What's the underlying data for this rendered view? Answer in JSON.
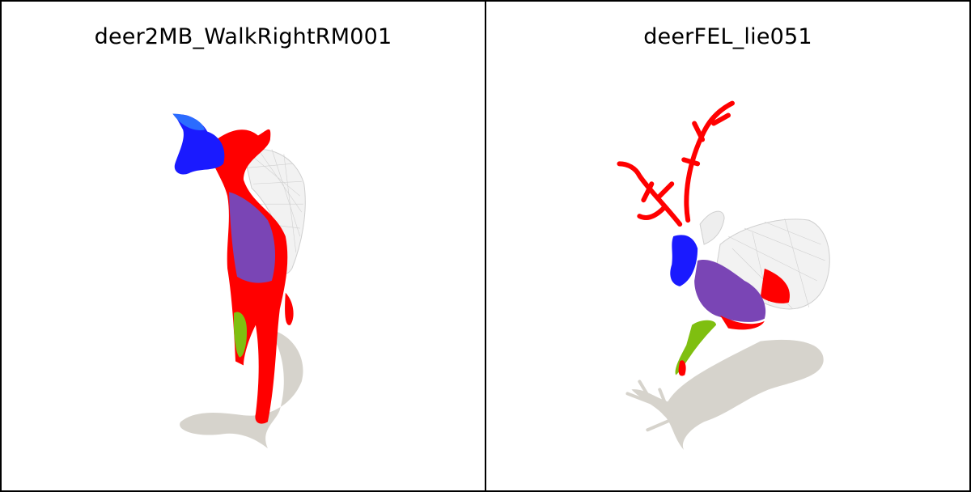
{
  "panels": [
    {
      "title": "deer2MB_WalkRightRM001"
    },
    {
      "title": "deerFEL_lie051"
    }
  ],
  "colors": {
    "red": "#ff0000",
    "blue": "#1a1aff",
    "purple": "#7a3fb8",
    "green": "#66cc00",
    "wireframe": "#d9d9d9",
    "shadow": "#d6d3cc"
  }
}
